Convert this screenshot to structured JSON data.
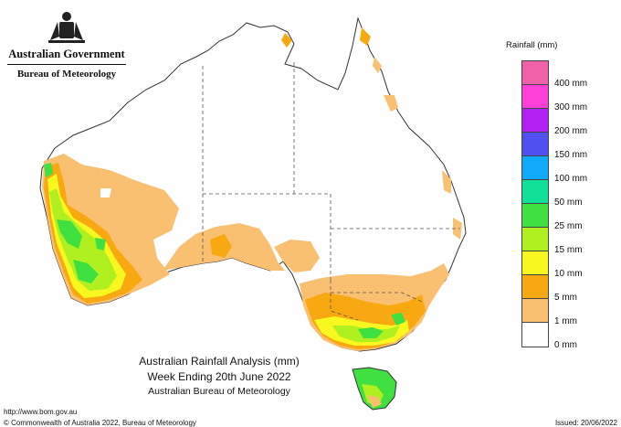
{
  "header": {
    "government": "Australian Government",
    "agency": "Bureau of Meteorology"
  },
  "title": {
    "line1": "Australian Rainfall Analysis (mm)",
    "line2": "Week Ending 20th June 2022",
    "line3": "Australian Bureau of Meteorology"
  },
  "footer": {
    "url": "http://www.bom.gov.au",
    "copyright": "© Commonwealth of Australia 2022, Bureau of Meteorology",
    "issued": "Issued: 20/06/2022"
  },
  "legend": {
    "title": "Rainfall (mm)",
    "bins": [
      {
        "label": "",
        "color": "#f060a8"
      },
      {
        "label": "400 mm",
        "color": "#ff40d8"
      },
      {
        "label": "300 mm",
        "color": "#b020f0"
      },
      {
        "label": "200 mm",
        "color": "#5050f0"
      },
      {
        "label": "150 mm",
        "color": "#10a8f8"
      },
      {
        "label": "100 mm",
        "color": "#10e098"
      },
      {
        "label": "50 mm",
        "color": "#40e040"
      },
      {
        "label": "25 mm",
        "color": "#b0f020"
      },
      {
        "label": "15 mm",
        "color": "#f8f820"
      },
      {
        "label": "10 mm",
        "color": "#f8a810"
      },
      {
        "label": "5 mm",
        "color": "#f8c070"
      },
      {
        "label": "1 mm",
        "color": "#ffffff"
      },
      {
        "label": "0 mm",
        "color": ""
      }
    ]
  },
  "colors": {
    "land": "#ffffff",
    "coast": "#333333",
    "border": "#555555",
    "rain_1mm": "#f8c070",
    "rain_5mm": "#f8a810",
    "rain_10mm": "#f8f820",
    "rain_15mm": "#b0f020",
    "rain_25mm": "#40e040"
  }
}
